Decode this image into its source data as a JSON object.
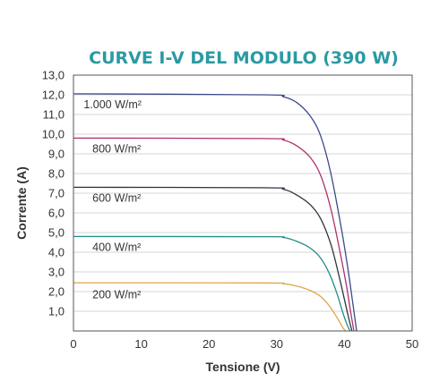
{
  "chart_data": {
    "type": "line",
    "title": "CURVE I-V DEL MODULO (390 W)",
    "xlabel": "Tensione (V)",
    "ylabel": "Corrente (A)",
    "xlim": [
      0,
      50
    ],
    "ylim": [
      0,
      13
    ],
    "xticks": [
      "0",
      "10",
      "20",
      "30",
      "40",
      "50"
    ],
    "yticks": [
      "1,0",
      "2,0",
      "3,0",
      "4,0",
      "5,0",
      "6,0",
      "7,0",
      "8,0",
      "9,0",
      "10,0",
      "11,0",
      "12,0",
      "13,0"
    ],
    "grid": true,
    "series": [
      {
        "name": "1.000 W/m²",
        "color": "#3b4a8c",
        "x": [
          0,
          28,
          31,
          33,
          35,
          36.5,
          38,
          39.5,
          40.5,
          41.2,
          41.8
        ],
        "y": [
          12.05,
          12.0,
          11.9,
          11.6,
          10.9,
          9.9,
          8.0,
          5.3,
          3.2,
          1.5,
          0
        ]
      },
      {
        "name": "800 W/m²",
        "color": "#b0306e",
        "x": [
          0,
          28,
          31,
          33,
          35,
          36.5,
          38,
          39.3,
          40.3,
          40.9,
          41.4
        ],
        "y": [
          9.8,
          9.78,
          9.7,
          9.4,
          8.8,
          7.9,
          6.2,
          4.1,
          2.3,
          1.0,
          0
        ]
      },
      {
        "name": "600 W/m²",
        "color": "#2f3440",
        "x": [
          0,
          28,
          31,
          33,
          35,
          36.5,
          38,
          39.2,
          40.0,
          40.6,
          41.1
        ],
        "y": [
          7.3,
          7.28,
          7.2,
          6.9,
          6.4,
          5.7,
          4.4,
          2.8,
          1.6,
          0.7,
          0
        ]
      },
      {
        "name": "400 W/m²",
        "color": "#1f8f8a",
        "x": [
          0,
          28,
          31,
          33,
          35,
          36.5,
          37.8,
          38.9,
          39.7,
          40.3,
          40.8
        ],
        "y": [
          4.8,
          4.79,
          4.75,
          4.55,
          4.2,
          3.7,
          2.9,
          1.9,
          1.0,
          0.4,
          0
        ]
      },
      {
        "name": "200 W/m²",
        "color": "#e0a54a",
        "x": [
          0,
          28,
          31,
          33,
          35,
          36.5,
          37.6,
          38.6,
          39.3,
          39.8,
          40.2
        ],
        "y": [
          2.45,
          2.44,
          2.4,
          2.28,
          2.05,
          1.75,
          1.35,
          0.85,
          0.45,
          0.15,
          0
        ]
      }
    ],
    "labels": [
      {
        "text": "1.000 W/m²",
        "x": 1.5,
        "y": 11.5
      },
      {
        "text": "800 W/m²",
        "x": 2.8,
        "y": 9.25
      },
      {
        "text": "600 W/m²",
        "x": 2.8,
        "y": 6.75
      },
      {
        "text": "400 W/m²",
        "x": 2.8,
        "y": 4.25
      },
      {
        "text": "200 W/m²",
        "x": 2.8,
        "y": 1.85
      }
    ]
  }
}
